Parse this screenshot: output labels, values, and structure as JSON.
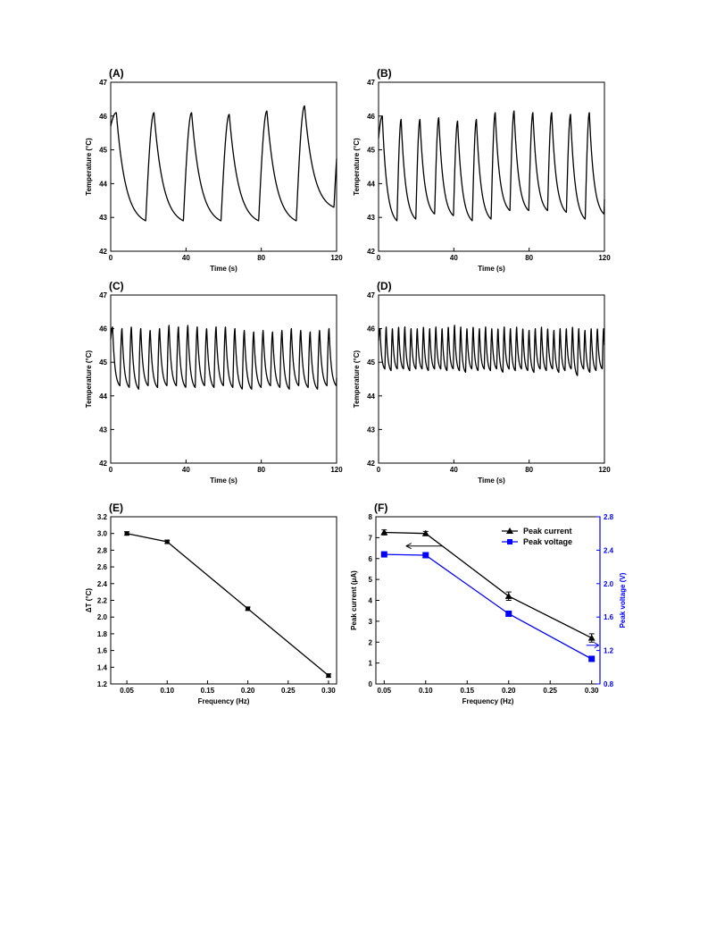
{
  "chart_data": [
    {
      "type": "line",
      "panel_label": "(A)",
      "xlabel": "Time (s)",
      "ylabel": "Temperature (°C)",
      "xlim": [
        0,
        120
      ],
      "ylim": [
        42,
        47
      ],
      "xticks": [
        0,
        40,
        80,
        120
      ],
      "yticks": [
        42,
        43,
        44,
        45,
        46,
        47
      ],
      "grid": false,
      "series": [
        {
          "color": "#000000",
          "period_s": 20,
          "first_peak_s": 3,
          "peak_c": [
            46.1,
            46.1,
            46.1,
            46.05,
            46.15,
            46.3
          ],
          "trough_c": [
            42.9,
            42.9,
            42.9,
            42.9,
            42.9,
            43.3
          ]
        }
      ]
    },
    {
      "type": "line",
      "panel_label": "(B)",
      "xlabel": "Time (s)",
      "ylabel": "Temperature (°C)",
      "xlim": [
        0,
        120
      ],
      "ylim": [
        42,
        47
      ],
      "xticks": [
        0,
        40,
        80,
        120
      ],
      "yticks": [
        42,
        43,
        44,
        45,
        46,
        47
      ],
      "grid": false,
      "series": [
        {
          "color": "#000000",
          "period_s": 10,
          "first_peak_s": 2,
          "peak_c": [
            46.0,
            45.9,
            45.9,
            45.95,
            45.85,
            45.9,
            46.1,
            46.15,
            46.1,
            46.1,
            46.05,
            46.1,
            46.15
          ],
          "trough_c": [
            42.9,
            42.95,
            43.1,
            43.05,
            42.9,
            42.95,
            43.2,
            43.2,
            43.2,
            43.15,
            42.95,
            43.1,
            43.2
          ]
        }
      ]
    },
    {
      "type": "line",
      "panel_label": "(C)",
      "xlabel": "Time (s)",
      "ylabel": "Temperature (°C)",
      "xlim": [
        0,
        120
      ],
      "ylim": [
        42,
        47
      ],
      "xticks": [
        0,
        40,
        80,
        120
      ],
      "yticks": [
        42,
        43,
        44,
        45,
        46,
        47
      ],
      "grid": false,
      "series": [
        {
          "color": "#000000",
          "period_s": 5,
          "first_peak_s": 1,
          "peak_c": [
            46.05,
            46.0,
            46.05,
            46.0,
            45.95,
            46.0,
            46.1,
            46.05,
            46.1,
            46.05,
            46.0,
            46.05,
            46.05,
            46.0,
            45.95,
            45.9,
            45.95,
            45.9,
            45.95,
            46.0,
            45.95,
            45.9,
            45.95,
            46.0,
            45.95
          ],
          "trough_c": [
            44.3,
            44.25,
            44.2,
            44.3,
            44.25,
            44.3,
            44.3,
            44.25,
            44.25,
            44.3,
            44.25,
            44.3,
            44.25,
            44.2,
            44.2,
            44.25,
            44.3,
            44.25,
            44.2,
            44.3,
            44.25,
            44.2,
            44.3,
            44.3,
            44.3
          ]
        }
      ]
    },
    {
      "type": "line",
      "panel_label": "(D)",
      "xlabel": "Time (s)",
      "ylabel": "Temperature (°C)",
      "xlim": [
        0,
        120
      ],
      "ylim": [
        42,
        47
      ],
      "xticks": [
        0,
        40,
        80,
        120
      ],
      "yticks": [
        42,
        43,
        44,
        45,
        46,
        47
      ],
      "grid": false,
      "series": [
        {
          "color": "#000000",
          "period_s": 3.3,
          "first_peak_s": 0.8,
          "peak_c": [
            46.0,
            46.05,
            46.0,
            46.05,
            46.05,
            46.0,
            46.0,
            46.05,
            46.0,
            46.05,
            46.0,
            46.05,
            46.1,
            46.05,
            46.0,
            46.05,
            46.0,
            46.05,
            46.0,
            46.0,
            46.05,
            46.0,
            46.05,
            46.0,
            45.95,
            46.0,
            46.05,
            46.0,
            45.95,
            46.0,
            46.0,
            46.05,
            46.0,
            45.95,
            46.0,
            46.0
          ],
          "trough_c": [
            44.8,
            44.75,
            44.8,
            44.8,
            44.75,
            44.8,
            44.8,
            44.75,
            44.8,
            44.8,
            44.75,
            44.8,
            44.75,
            44.7,
            44.8,
            44.75,
            44.8,
            44.75,
            44.8,
            44.7,
            44.8,
            44.75,
            44.8,
            44.75,
            44.7,
            44.8,
            44.75,
            44.8,
            44.7,
            44.75,
            44.8,
            44.6,
            44.8,
            44.7,
            44.75,
            44.8
          ]
        }
      ]
    },
    {
      "type": "line",
      "panel_label": "(E)",
      "xlabel": "Frequency (Hz)",
      "ylabel": "ΔT (°C)",
      "xlim": [
        0.03,
        0.31
      ],
      "ylim": [
        1.2,
        3.2
      ],
      "xticks": [
        "0.05",
        "0.10",
        "0.15",
        "0.20",
        "0.25",
        "0.30"
      ],
      "yticks": [
        "1.2",
        "1.4",
        "1.6",
        "1.8",
        "2.0",
        "2.2",
        "2.4",
        "2.6",
        "2.8",
        "3.0",
        "3.2"
      ],
      "grid": false,
      "series": [
        {
          "color": "#000000",
          "marker": "square",
          "x": [
            0.05,
            0.1,
            0.2,
            0.3
          ],
          "y": [
            3.0,
            2.9,
            2.1,
            1.3
          ],
          "yerr": [
            0.02,
            0.02,
            0.02,
            0.02
          ]
        }
      ]
    },
    {
      "type": "line",
      "panel_label": "(F)",
      "xlabel": "Frequency (Hz)",
      "ylabel": "Peak current (μA)",
      "y2label": "Peak voltage (V)",
      "xlim": [
        0.04,
        0.31
      ],
      "ylim": [
        0,
        8
      ],
      "y2lim": [
        0.8,
        2.8
      ],
      "xticks": [
        "0.05",
        "0.10",
        "0.15",
        "0.20",
        "0.25",
        "0.30"
      ],
      "yticks": [
        "0",
        "1",
        "2",
        "3",
        "4",
        "5",
        "6",
        "7",
        "8"
      ],
      "y2ticks": [
        "0.8",
        "1.2",
        "1.6",
        "2.0",
        "2.4",
        "2.8"
      ],
      "legend_position": "top-right",
      "grid": false,
      "series": [
        {
          "name": "Peak current",
          "axis": "left",
          "color": "#000000",
          "marker": "triangle",
          "x": [
            0.05,
            0.1,
            0.2,
            0.3
          ],
          "y": [
            7.25,
            7.2,
            4.2,
            2.2
          ],
          "yerr": [
            0.12,
            0.1,
            0.2,
            0.2
          ]
        },
        {
          "name": "Peak voltage",
          "axis": "right",
          "color": "#0000ff",
          "marker": "square",
          "x": [
            0.05,
            0.1,
            0.2,
            0.3
          ],
          "y": [
            2.35,
            2.34,
            1.64,
            1.1
          ]
        }
      ]
    }
  ]
}
